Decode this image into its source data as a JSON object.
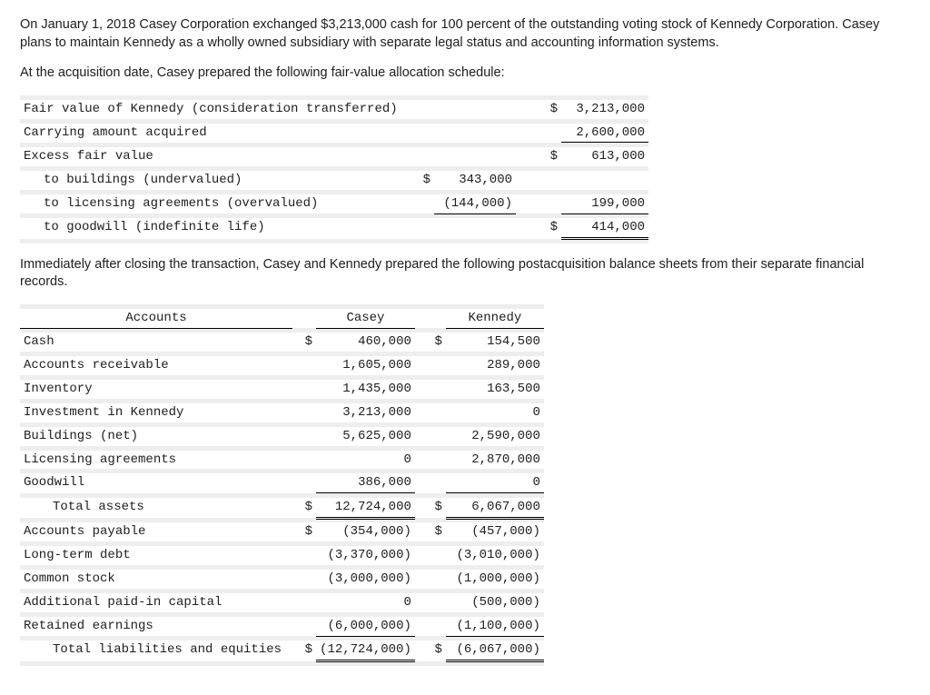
{
  "paragraph1": "On January 1, 2018 Casey Corporation exchanged $3,213,000 cash for 100 percent of the outstanding voting stock of Kennedy Corporation. Casey plans to maintain Kennedy as a wholly owned subsidiary with separate legal status and accounting information systems.",
  "paragraph2": "At the acquisition date, Casey prepared the following fair-value allocation schedule:",
  "paragraph3": "Immediately after closing the transaction, Casey and Kennedy prepared the following postacquisition balance sheets from their separate financial records.",
  "fv": {
    "rows": [
      {
        "label": "Fair value of Kennedy (consideration transferred)",
        "indent": 0,
        "c1s": "",
        "c1v": "",
        "c1rule": "",
        "c2s": "$",
        "c2v": "3,213,000",
        "c2rule": ""
      },
      {
        "label": "Carrying amount acquired",
        "indent": 0,
        "c1s": "",
        "c1v": "",
        "c1rule": "",
        "c2s": "",
        "c2v": "2,600,000",
        "c2rule": "ul"
      },
      {
        "label": "Excess fair value",
        "indent": 0,
        "c1s": "",
        "c1v": "",
        "c1rule": "",
        "c2s": "$",
        "c2v": "613,000",
        "c2rule": ""
      },
      {
        "label": "to buildings (undervalued)",
        "indent": 1,
        "c1s": "$",
        "c1v": "343,000",
        "c1rule": "",
        "c2s": "",
        "c2v": "",
        "c2rule": ""
      },
      {
        "label": "to licensing agreements (overvalued)",
        "indent": 1,
        "c1s": "",
        "c1v": "(144,000)",
        "c1rule": "ul",
        "c2s": "",
        "c2v": "199,000",
        "c2rule": "ul"
      },
      {
        "label": "to goodwill (indefinite life)",
        "indent": 1,
        "c1s": "",
        "c1v": "",
        "c1rule": "",
        "c2s": "$",
        "c2v": "414,000",
        "c2rule": "dbl"
      }
    ],
    "col_widths": {
      "label": 430,
      "sym": 18,
      "num1": 90,
      "gap": 24,
      "num2": 96
    }
  },
  "bs": {
    "header_accounts": "Accounts",
    "header_casey": "Casey",
    "header_kennedy": "Kennedy",
    "rows": [
      {
        "label": "Cash",
        "indent": 0,
        "s1": "$",
        "v1": "460,000",
        "r1": "",
        "s2": "$",
        "v2": "154,500",
        "r2": ""
      },
      {
        "label": "Accounts receivable",
        "indent": 0,
        "s1": "",
        "v1": "1,605,000",
        "r1": "",
        "s2": "",
        "v2": "289,000",
        "r2": ""
      },
      {
        "label": "Inventory",
        "indent": 0,
        "s1": "",
        "v1": "1,435,000",
        "r1": "",
        "s2": "",
        "v2": "163,500",
        "r2": ""
      },
      {
        "label": "Investment in Kennedy",
        "indent": 0,
        "s1": "",
        "v1": "3,213,000",
        "r1": "",
        "s2": "",
        "v2": "0",
        "r2": ""
      },
      {
        "label": "Buildings (net)",
        "indent": 0,
        "s1": "",
        "v1": "5,625,000",
        "r1": "",
        "s2": "",
        "v2": "2,590,000",
        "r2": ""
      },
      {
        "label": "Licensing agreements",
        "indent": 0,
        "s1": "",
        "v1": "0",
        "r1": "",
        "s2": "",
        "v2": "2,870,000",
        "r2": ""
      },
      {
        "label": "Goodwill",
        "indent": 0,
        "s1": "",
        "v1": "386,000",
        "r1": "ul",
        "s2": "",
        "v2": "0",
        "r2": "ul"
      },
      {
        "label": "Total assets",
        "indent": 2,
        "s1": "$",
        "v1": "12,724,000",
        "r1": "dbl",
        "s2": "$",
        "v2": "6,067,000",
        "r2": "dbl"
      },
      {
        "label": "Accounts payable",
        "indent": 0,
        "s1": "$",
        "v1": "(354,000)",
        "r1": "",
        "s2": "$",
        "v2": "(457,000)",
        "r2": ""
      },
      {
        "label": "Long-term debt",
        "indent": 0,
        "s1": "",
        "v1": "(3,370,000)",
        "r1": "",
        "s2": "",
        "v2": "(3,010,000)",
        "r2": ""
      },
      {
        "label": "Common stock",
        "indent": 0,
        "s1": "",
        "v1": "(3,000,000)",
        "r1": "",
        "s2": "",
        "v2": "(1,000,000)",
        "r2": ""
      },
      {
        "label": "Additional paid-in capital",
        "indent": 0,
        "s1": "",
        "v1": "0",
        "r1": "",
        "s2": "",
        "v2": "(500,000)",
        "r2": ""
      },
      {
        "label": "Retained earnings",
        "indent": 0,
        "s1": "",
        "v1": "(6,000,000)",
        "r1": "ul",
        "s2": "",
        "v2": "(1,100,000)",
        "r2": "ul"
      },
      {
        "label": "Total liabilities and equities",
        "indent": 2,
        "s1": "$",
        "v1": "(12,724,000)",
        "r1": "dbl",
        "s2": "$",
        "v2": "(6,067,000)",
        "r2": "dbl"
      }
    ],
    "col_widths": {
      "label": 300,
      "sym": 18,
      "num": 108,
      "gap": 8
    }
  }
}
